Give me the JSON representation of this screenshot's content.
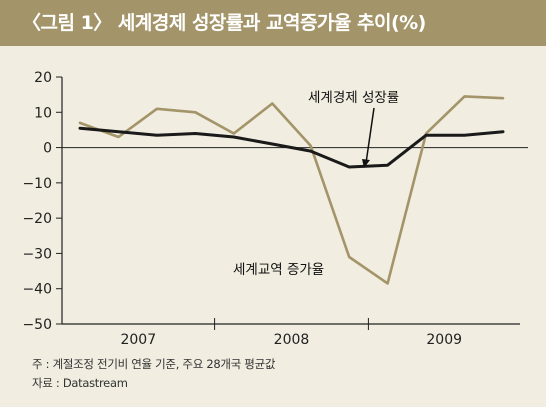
{
  "title": "〈그림 1〉 세계경제 성장률과 교역증가율 추이(%)",
  "colors": {
    "background": "#f1ede0",
    "title_bar": "#a39569",
    "gdp_line": "#1a1a1a",
    "trade_line": "#a39569"
  },
  "notes": {
    "note": "주 : 계절조정 전기비 연율 기준, 주요 28개국 평균값",
    "source": "자료 : Datastream"
  },
  "chart_data": {
    "type": "line",
    "title": "〈그림 1〉 세계경제 성장률과 교역증가율 추이(%)",
    "xlabel": "",
    "ylabel": "",
    "ylim": [
      -50,
      20
    ],
    "yticks": [
      20,
      10,
      0,
      -10,
      -20,
      -30,
      -40,
      -50
    ],
    "ytick_labels": [
      "20",
      "10",
      "0",
      "−10",
      "−20",
      "−30",
      "−40",
      "−50"
    ],
    "years": [
      "2007",
      "2008",
      "2009"
    ],
    "x": [
      "2007Q1",
      "2007Q2",
      "2007Q3",
      "2007Q4",
      "2008Q1",
      "2008Q2",
      "2008Q3",
      "2008Q4",
      "2009Q1",
      "2009Q2",
      "2009Q3",
      "2009Q4"
    ],
    "grid": false,
    "series": [
      {
        "name": "세계경제 성장률",
        "color": "#1a1a1a",
        "values": [
          5.5,
          4.5,
          3.5,
          4.0,
          3.0,
          1.0,
          -1.0,
          -5.5,
          -5.0,
          3.5,
          3.5,
          4.5
        ]
      },
      {
        "name": "세계교역 증가율",
        "color": "#a39569",
        "values": [
          7.0,
          3.0,
          11.0,
          10.0,
          4.0,
          12.5,
          0.5,
          -31.0,
          -38.5,
          4.0,
          14.5,
          14.0
        ]
      }
    ]
  }
}
